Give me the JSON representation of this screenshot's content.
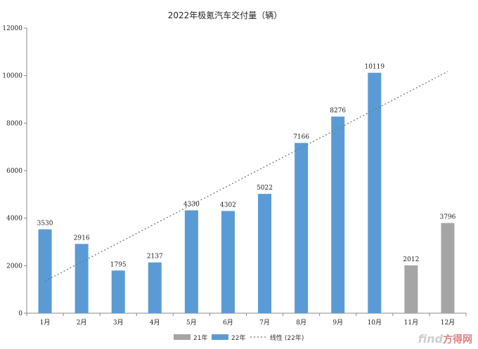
{
  "watermark": {
    "brand": "find",
    "site": "方得网"
  },
  "chart_data": {
    "type": "bar",
    "title": "2022年极氪汽车交付量（辆）",
    "categories": [
      "1月",
      "2月",
      "3月",
      "4月",
      "5月",
      "6月",
      "7月",
      "8月",
      "9月",
      "10月",
      "11月",
      "12月"
    ],
    "series": [
      {
        "name": "21年",
        "color": "#a5a5a5",
        "values": [
          null,
          null,
          null,
          null,
          null,
          null,
          null,
          null,
          null,
          null,
          2012,
          3796
        ]
      },
      {
        "name": "22年",
        "color": "#5b9bd5",
        "values": [
          3530,
          2916,
          1795,
          2137,
          4330,
          4302,
          5022,
          7166,
          8276,
          10119,
          null,
          null
        ]
      }
    ],
    "trendline": {
      "name": "线性 (22年)",
      "series": "22年",
      "type": "linear"
    },
    "ylim": [
      0,
      12000
    ],
    "yticks": [
      "0",
      "2000",
      "4000",
      "6000",
      "8000",
      "10000",
      "12000"
    ],
    "grid": false,
    "legend_position": "bottom"
  }
}
